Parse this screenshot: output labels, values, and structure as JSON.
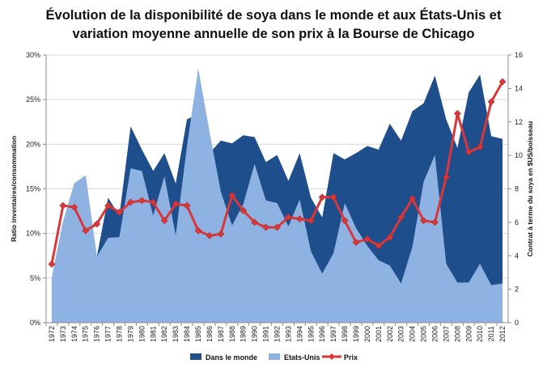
{
  "chart_data": {
    "type": "area",
    "title_line1": "Évolution de la disponibilité de soya dans le monde et aux États-Unis et",
    "title_line2": "variation moyenne annuelle de son prix à la Bourse de Chicago",
    "ylabel_left": "Ratio inventaires/consommation",
    "ylabel_right": "Contrat à terme du soya en $US/boisseau",
    "ylim_left": [
      0,
      30
    ],
    "ylim_right": [
      0,
      16
    ],
    "yticks_left": [
      "0%",
      "5%",
      "10%",
      "15%",
      "20%",
      "25%",
      "30%"
    ],
    "yticks_right": [
      "0",
      "2",
      "4",
      "6",
      "8",
      "10",
      "12",
      "14",
      "16"
    ],
    "x": [
      "1972",
      "1973",
      "1974",
      "1975",
      "1976",
      "1977",
      "1978",
      "1979",
      "1980",
      "1981",
      "1982",
      "1983",
      "1984",
      "1985",
      "1986",
      "1987",
      "1988",
      "1989",
      "1990",
      "1991",
      "1992",
      "1993",
      "1994",
      "1995",
      "1996",
      "1997",
      "1998",
      "1999",
      "2000",
      "2001",
      "2002",
      "2003",
      "2004",
      "2005",
      "2006",
      "2007",
      "2008",
      "2009",
      "2010",
      "2011",
      "2012"
    ],
    "grid": true,
    "legend_position": "bottom",
    "series": [
      {
        "name": "Dans le monde",
        "type": "area",
        "axis": "left",
        "color": "#1f4e8c",
        "values": [
          5.0,
          11.3,
          15.6,
          16.5,
          7.4,
          14.0,
          12.0,
          22.0,
          19.4,
          17.0,
          19.0,
          15.6,
          22.8,
          23.4,
          19.0,
          20.4,
          20.1,
          21.0,
          20.8,
          18.0,
          18.8,
          15.9,
          19.0,
          14.0,
          11.8,
          19.0,
          18.3,
          19.0,
          19.8,
          19.4,
          22.3,
          20.4,
          23.7,
          24.6,
          27.7,
          22.8,
          19.6,
          25.8,
          27.8,
          20.9,
          20.6
        ]
      },
      {
        "name": "Etats-Unis",
        "type": "area",
        "axis": "left",
        "color": "#8eb3e2",
        "values": [
          5.0,
          11.3,
          15.6,
          16.5,
          7.4,
          9.5,
          9.6,
          17.3,
          17.0,
          12.0,
          16.4,
          9.8,
          19.8,
          28.5,
          21.4,
          14.7,
          10.9,
          13.3,
          17.8,
          13.7,
          13.4,
          10.8,
          13.8,
          8.0,
          5.5,
          7.8,
          13.4,
          10.6,
          8.6,
          7.0,
          6.4,
          4.4,
          8.5,
          15.8,
          18.8,
          6.6,
          4.5,
          4.5,
          6.6,
          4.2,
          4.4
        ]
      },
      {
        "name": "Prix",
        "type": "line",
        "axis": "right",
        "color": "#d9383a",
        "values": [
          3.5,
          7.0,
          6.9,
          5.5,
          5.9,
          7.0,
          6.6,
          7.2,
          7.3,
          7.2,
          6.1,
          7.1,
          7.0,
          5.5,
          5.2,
          5.3,
          7.6,
          6.7,
          6.0,
          5.7,
          5.7,
          6.3,
          6.2,
          6.1,
          7.5,
          7.5,
          6.1,
          4.8,
          5.0,
          4.6,
          5.1,
          6.3,
          7.4,
          6.1,
          6.0,
          8.7,
          12.5,
          10.2,
          10.5,
          13.2,
          14.4
        ]
      }
    ]
  }
}
